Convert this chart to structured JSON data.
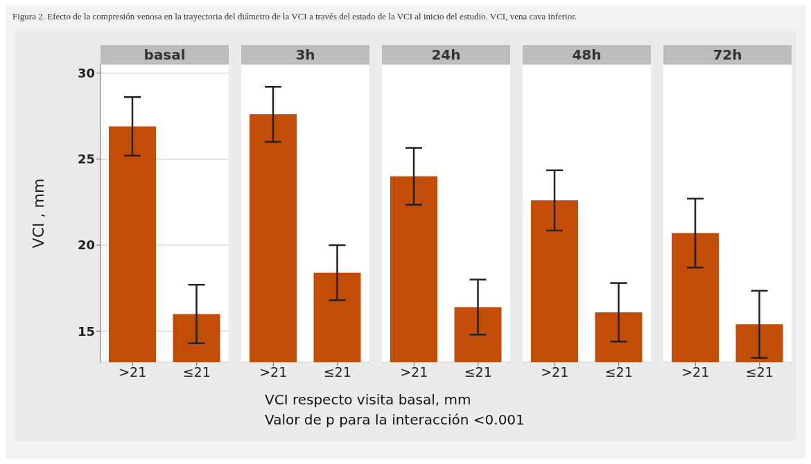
{
  "chart_data": [
    {
      "type": "bar",
      "title": "basal",
      "ylabel": "VCI , mm",
      "categories": [
        ">21",
        "≤21"
      ],
      "values": [
        26.9,
        16.0
      ],
      "errors": [
        1.7,
        1.7
      ],
      "color": "#c24d08",
      "ylim": [
        13.2,
        30.5
      ],
      "yticks": [
        15,
        20,
        25,
        30
      ],
      "grid": "y",
      "annotations": [
        "Figura 2. Efecto de la compresión venosa en la trayectoria del diámetro de la VCI a través del estado de la VCI al inicio del estudio. VCI, vena cava inferior."
      ]
    },
    {
      "type": "bar",
      "title": "3h",
      "categories": [
        ">21",
        "≤21"
      ],
      "values": [
        27.6,
        18.4
      ],
      "errors": [
        1.6,
        1.6
      ],
      "color": "#c24d08",
      "ylim": [
        13.2,
        30.5
      ],
      "yticks": [
        15,
        20,
        25,
        30
      ],
      "grid": "y",
      "tick_labels": "x"
    },
    {
      "type": "bar",
      "title": "24h",
      "xlabel": "VCI respecto visita basal, mm",
      "categories": [
        ">21",
        "≤21"
      ],
      "values": [
        24.0,
        16.4
      ],
      "errors": [
        1.65,
        1.6
      ],
      "color": "#c24d08",
      "ylim": [
        13.2,
        30.5
      ],
      "yticks": [
        15,
        20,
        25,
        30
      ],
      "grid": "y",
      "tick_labels": "x",
      "annotations": [
        "Valor de p para la interacción <0.001"
      ]
    },
    {
      "type": "bar",
      "title": "48h",
      "categories": [
        ">21",
        "≤21"
      ],
      "values": [
        22.6,
        16.1
      ],
      "errors": [
        1.75,
        1.7
      ],
      "color": "#c24d08",
      "ylim": [
        13.2,
        30.5
      ],
      "yticks": [
        15,
        20,
        25,
        30
      ],
      "grid": "y",
      "tick_labels": "x"
    },
    {
      "type": "bar",
      "title": "72h",
      "categories": [
        ">21",
        "≤21"
      ],
      "values": [
        20.7,
        15.4
      ],
      "errors": [
        2.0,
        1.95
      ],
      "color": "#c24d08",
      "ylim": [
        13.2,
        30.5
      ],
      "yticks": [
        15,
        20,
        25,
        30
      ],
      "grid": "y",
      "tick_labels": "x"
    }
  ]
}
